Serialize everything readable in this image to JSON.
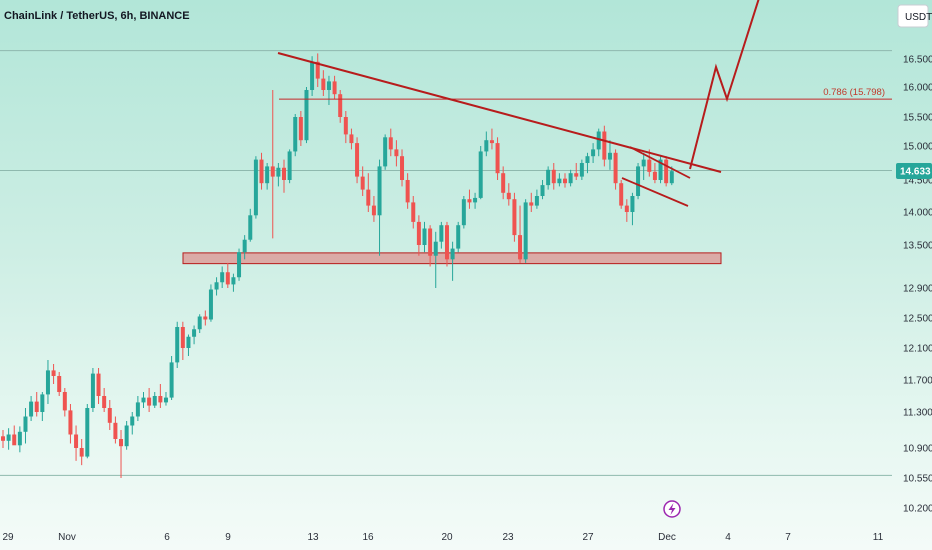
{
  "header": {
    "symbol_title": "ChainLink / TetherUS, 6h, BINANCE",
    "currency": "USDT"
  },
  "colors": {
    "up": "#26a69a",
    "down": "#ef5350",
    "drawing": "#b71c1c",
    "zone_fill": "#e57373",
    "price_tag": "#26a69a"
  },
  "chart_data": {
    "type": "candlestick",
    "title": "ChainLink / TetherUS, 6h, BINANCE",
    "xlabel": "",
    "ylabel": "",
    "y_axis_labels": [
      "16.500",
      "16.000",
      "15.500",
      "15.000",
      "14.500",
      "14.000",
      "13.500",
      "12.900",
      "12.500",
      "12.100",
      "11.700",
      "11.300",
      "10.900",
      "10.550",
      "10.200"
    ],
    "x_axis_labels": [
      "29",
      "Nov",
      "6",
      "9",
      "13",
      "16",
      "20",
      "23",
      "27",
      "Dec",
      "4",
      "7",
      "11"
    ],
    "current_price": "14.633",
    "fib_level": {
      "label": "0.786 (15.798)",
      "value": 15.798
    },
    "support_zone": {
      "low": 13.24,
      "high": 13.39
    },
    "reference_levels": [
      16.65,
      14.64,
      10.58
    ],
    "candles": [
      [
        11.03,
        11.1,
        10.9,
        10.98
      ],
      [
        10.98,
        11.12,
        10.88,
        11.05
      ],
      [
        11.05,
        11.15,
        10.95,
        10.93
      ],
      [
        10.93,
        11.14,
        10.85,
        11.08
      ],
      [
        11.08,
        11.35,
        10.95,
        11.25
      ],
      [
        11.25,
        11.5,
        11.2,
        11.43
      ],
      [
        11.43,
        11.55,
        11.25,
        11.3
      ],
      [
        11.3,
        11.55,
        11.2,
        11.52
      ],
      [
        11.52,
        11.95,
        11.4,
        11.82
      ],
      [
        11.82,
        11.9,
        11.65,
        11.75
      ],
      [
        11.75,
        11.8,
        11.5,
        11.55
      ],
      [
        11.55,
        11.6,
        11.25,
        11.32
      ],
      [
        11.32,
        11.4,
        10.95,
        11.05
      ],
      [
        11.05,
        11.15,
        10.75,
        10.9
      ],
      [
        10.9,
        11.0,
        10.7,
        10.8
      ],
      [
        10.8,
        11.4,
        10.78,
        11.35
      ],
      [
        11.35,
        11.85,
        11.3,
        11.78
      ],
      [
        11.78,
        11.85,
        11.4,
        11.5
      ],
      [
        11.5,
        11.6,
        11.3,
        11.35
      ],
      [
        11.35,
        11.45,
        11.1,
        11.18
      ],
      [
        11.18,
        11.25,
        10.95,
        11.0
      ],
      [
        11.0,
        11.1,
        10.55,
        10.92
      ],
      [
        10.92,
        11.2,
        10.88,
        11.15
      ],
      [
        11.15,
        11.3,
        11.05,
        11.25
      ],
      [
        11.25,
        11.5,
        11.2,
        11.42
      ],
      [
        11.42,
        11.55,
        11.35,
        11.48
      ],
      [
        11.48,
        11.6,
        11.3,
        11.38
      ],
      [
        11.38,
        11.55,
        11.35,
        11.5
      ],
      [
        11.5,
        11.65,
        11.35,
        11.42
      ],
      [
        11.42,
        11.55,
        11.38,
        11.48
      ],
      [
        11.48,
        12.0,
        11.45,
        11.92
      ],
      [
        11.92,
        12.45,
        11.85,
        12.38
      ],
      [
        12.38,
        12.45,
        11.95,
        12.1
      ],
      [
        12.1,
        12.28,
        12.0,
        12.25
      ],
      [
        12.25,
        12.4,
        12.15,
        12.35
      ],
      [
        12.35,
        12.55,
        12.3,
        12.52
      ],
      [
        12.52,
        12.6,
        12.4,
        12.48
      ],
      [
        12.48,
        12.95,
        12.45,
        12.88
      ],
      [
        12.88,
        13.05,
        12.8,
        12.98
      ],
      [
        12.98,
        13.2,
        12.9,
        13.12
      ],
      [
        13.12,
        13.25,
        12.9,
        12.95
      ],
      [
        12.95,
        13.1,
        12.85,
        13.05
      ],
      [
        13.05,
        13.45,
        13.0,
        13.4
      ],
      [
        13.4,
        13.65,
        13.3,
        13.58
      ],
      [
        13.58,
        14.05,
        13.55,
        13.95
      ],
      [
        13.95,
        14.85,
        13.9,
        14.8
      ],
      [
        14.8,
        14.9,
        14.35,
        14.45
      ],
      [
        14.45,
        14.75,
        14.35,
        14.7
      ],
      [
        14.7,
        15.95,
        13.6,
        14.55
      ],
      [
        14.55,
        14.75,
        14.4,
        14.68
      ],
      [
        14.68,
        14.8,
        14.3,
        14.5
      ],
      [
        14.5,
        14.95,
        14.45,
        14.92
      ],
      [
        14.92,
        15.55,
        14.85,
        15.5
      ],
      [
        15.5,
        15.6,
        15.0,
        15.1
      ],
      [
        15.1,
        16.0,
        15.05,
        15.95
      ],
      [
        15.95,
        16.55,
        15.85,
        16.45
      ],
      [
        16.45,
        16.6,
        16.0,
        16.15
      ],
      [
        16.15,
        16.3,
        15.85,
        15.95
      ],
      [
        15.95,
        16.2,
        15.7,
        16.1
      ],
      [
        16.1,
        16.2,
        15.8,
        15.88
      ],
      [
        15.88,
        15.95,
        15.4,
        15.5
      ],
      [
        15.5,
        15.6,
        15.05,
        15.2
      ],
      [
        15.2,
        15.3,
        14.95,
        15.05
      ],
      [
        15.05,
        15.15,
        14.45,
        14.55
      ],
      [
        14.55,
        14.7,
        14.25,
        14.35
      ],
      [
        14.35,
        14.6,
        14.0,
        14.1
      ],
      [
        14.1,
        14.25,
        13.85,
        13.95
      ],
      [
        13.95,
        14.8,
        13.35,
        14.7
      ],
      [
        14.7,
        15.2,
        14.65,
        15.15
      ],
      [
        15.15,
        15.3,
        14.85,
        14.95
      ],
      [
        14.95,
        15.1,
        14.7,
        14.85
      ],
      [
        14.85,
        14.95,
        14.4,
        14.5
      ],
      [
        14.5,
        14.6,
        14.05,
        14.15
      ],
      [
        14.15,
        14.25,
        13.75,
        13.85
      ],
      [
        13.85,
        13.95,
        13.35,
        13.5
      ],
      [
        13.5,
        13.85,
        13.4,
        13.75
      ],
      [
        13.75,
        13.8,
        13.2,
        13.35
      ],
      [
        13.35,
        13.7,
        12.9,
        13.55
      ],
      [
        13.55,
        13.85,
        13.45,
        13.8
      ],
      [
        13.8,
        13.85,
        13.2,
        13.3
      ],
      [
        13.3,
        13.55,
        13.0,
        13.45
      ],
      [
        13.45,
        13.85,
        13.4,
        13.8
      ],
      [
        13.8,
        14.25,
        13.75,
        14.2
      ],
      [
        14.2,
        14.35,
        14.05,
        14.15
      ],
      [
        14.15,
        14.3,
        14.05,
        14.22
      ],
      [
        14.22,
        15.0,
        14.2,
        14.92
      ],
      [
        14.92,
        15.25,
        14.85,
        15.1
      ],
      [
        15.1,
        15.3,
        14.95,
        15.05
      ],
      [
        15.05,
        15.15,
        14.5,
        14.6
      ],
      [
        14.6,
        14.7,
        14.2,
        14.3
      ],
      [
        14.3,
        14.45,
        14.1,
        14.2
      ],
      [
        14.2,
        14.3,
        13.55,
        13.65
      ],
      [
        13.65,
        14.1,
        13.25,
        13.3
      ],
      [
        13.3,
        14.2,
        13.25,
        14.15
      ],
      [
        14.15,
        14.3,
        14.0,
        14.1
      ],
      [
        14.1,
        14.35,
        14.05,
        14.25
      ],
      [
        14.25,
        14.5,
        14.2,
        14.42
      ],
      [
        14.42,
        14.7,
        14.35,
        14.65
      ],
      [
        14.65,
        14.75,
        14.35,
        14.45
      ],
      [
        14.45,
        14.6,
        14.4,
        14.52
      ],
      [
        14.52,
        14.6,
        14.38,
        14.45
      ],
      [
        14.45,
        14.65,
        14.4,
        14.6
      ],
      [
        14.6,
        14.75,
        14.5,
        14.55
      ],
      [
        14.55,
        14.8,
        14.5,
        14.75
      ],
      [
        14.75,
        14.9,
        14.6,
        14.85
      ],
      [
        14.85,
        15.05,
        14.75,
        14.95
      ],
      [
        14.95,
        15.3,
        14.85,
        15.25
      ],
      [
        15.25,
        15.35,
        14.7,
        14.8
      ],
      [
        14.8,
        15.1,
        14.65,
        14.9
      ],
      [
        14.9,
        14.95,
        14.35,
        14.45
      ],
      [
        14.45,
        14.5,
        14.05,
        14.1
      ],
      [
        14.1,
        14.2,
        13.85,
        14.0
      ],
      [
        14.0,
        14.3,
        13.8,
        14.25
      ],
      [
        14.25,
        14.75,
        14.2,
        14.7
      ],
      [
        14.7,
        14.9,
        14.5,
        14.8
      ],
      [
        14.8,
        14.95,
        14.55,
        14.62
      ],
      [
        14.62,
        14.75,
        14.45,
        14.5
      ],
      [
        14.5,
        14.85,
        14.45,
        14.8
      ],
      [
        14.8,
        14.85,
        14.4,
        14.45
      ],
      [
        14.45,
        14.7,
        14.42,
        14.63
      ]
    ],
    "projection_path": [
      [
        14.5,
        14.85
      ],
      [
        15.5,
        15.8
      ],
      [
        15.95,
        16.45
      ],
      [
        16.6,
        17.2
      ]
    ]
  }
}
